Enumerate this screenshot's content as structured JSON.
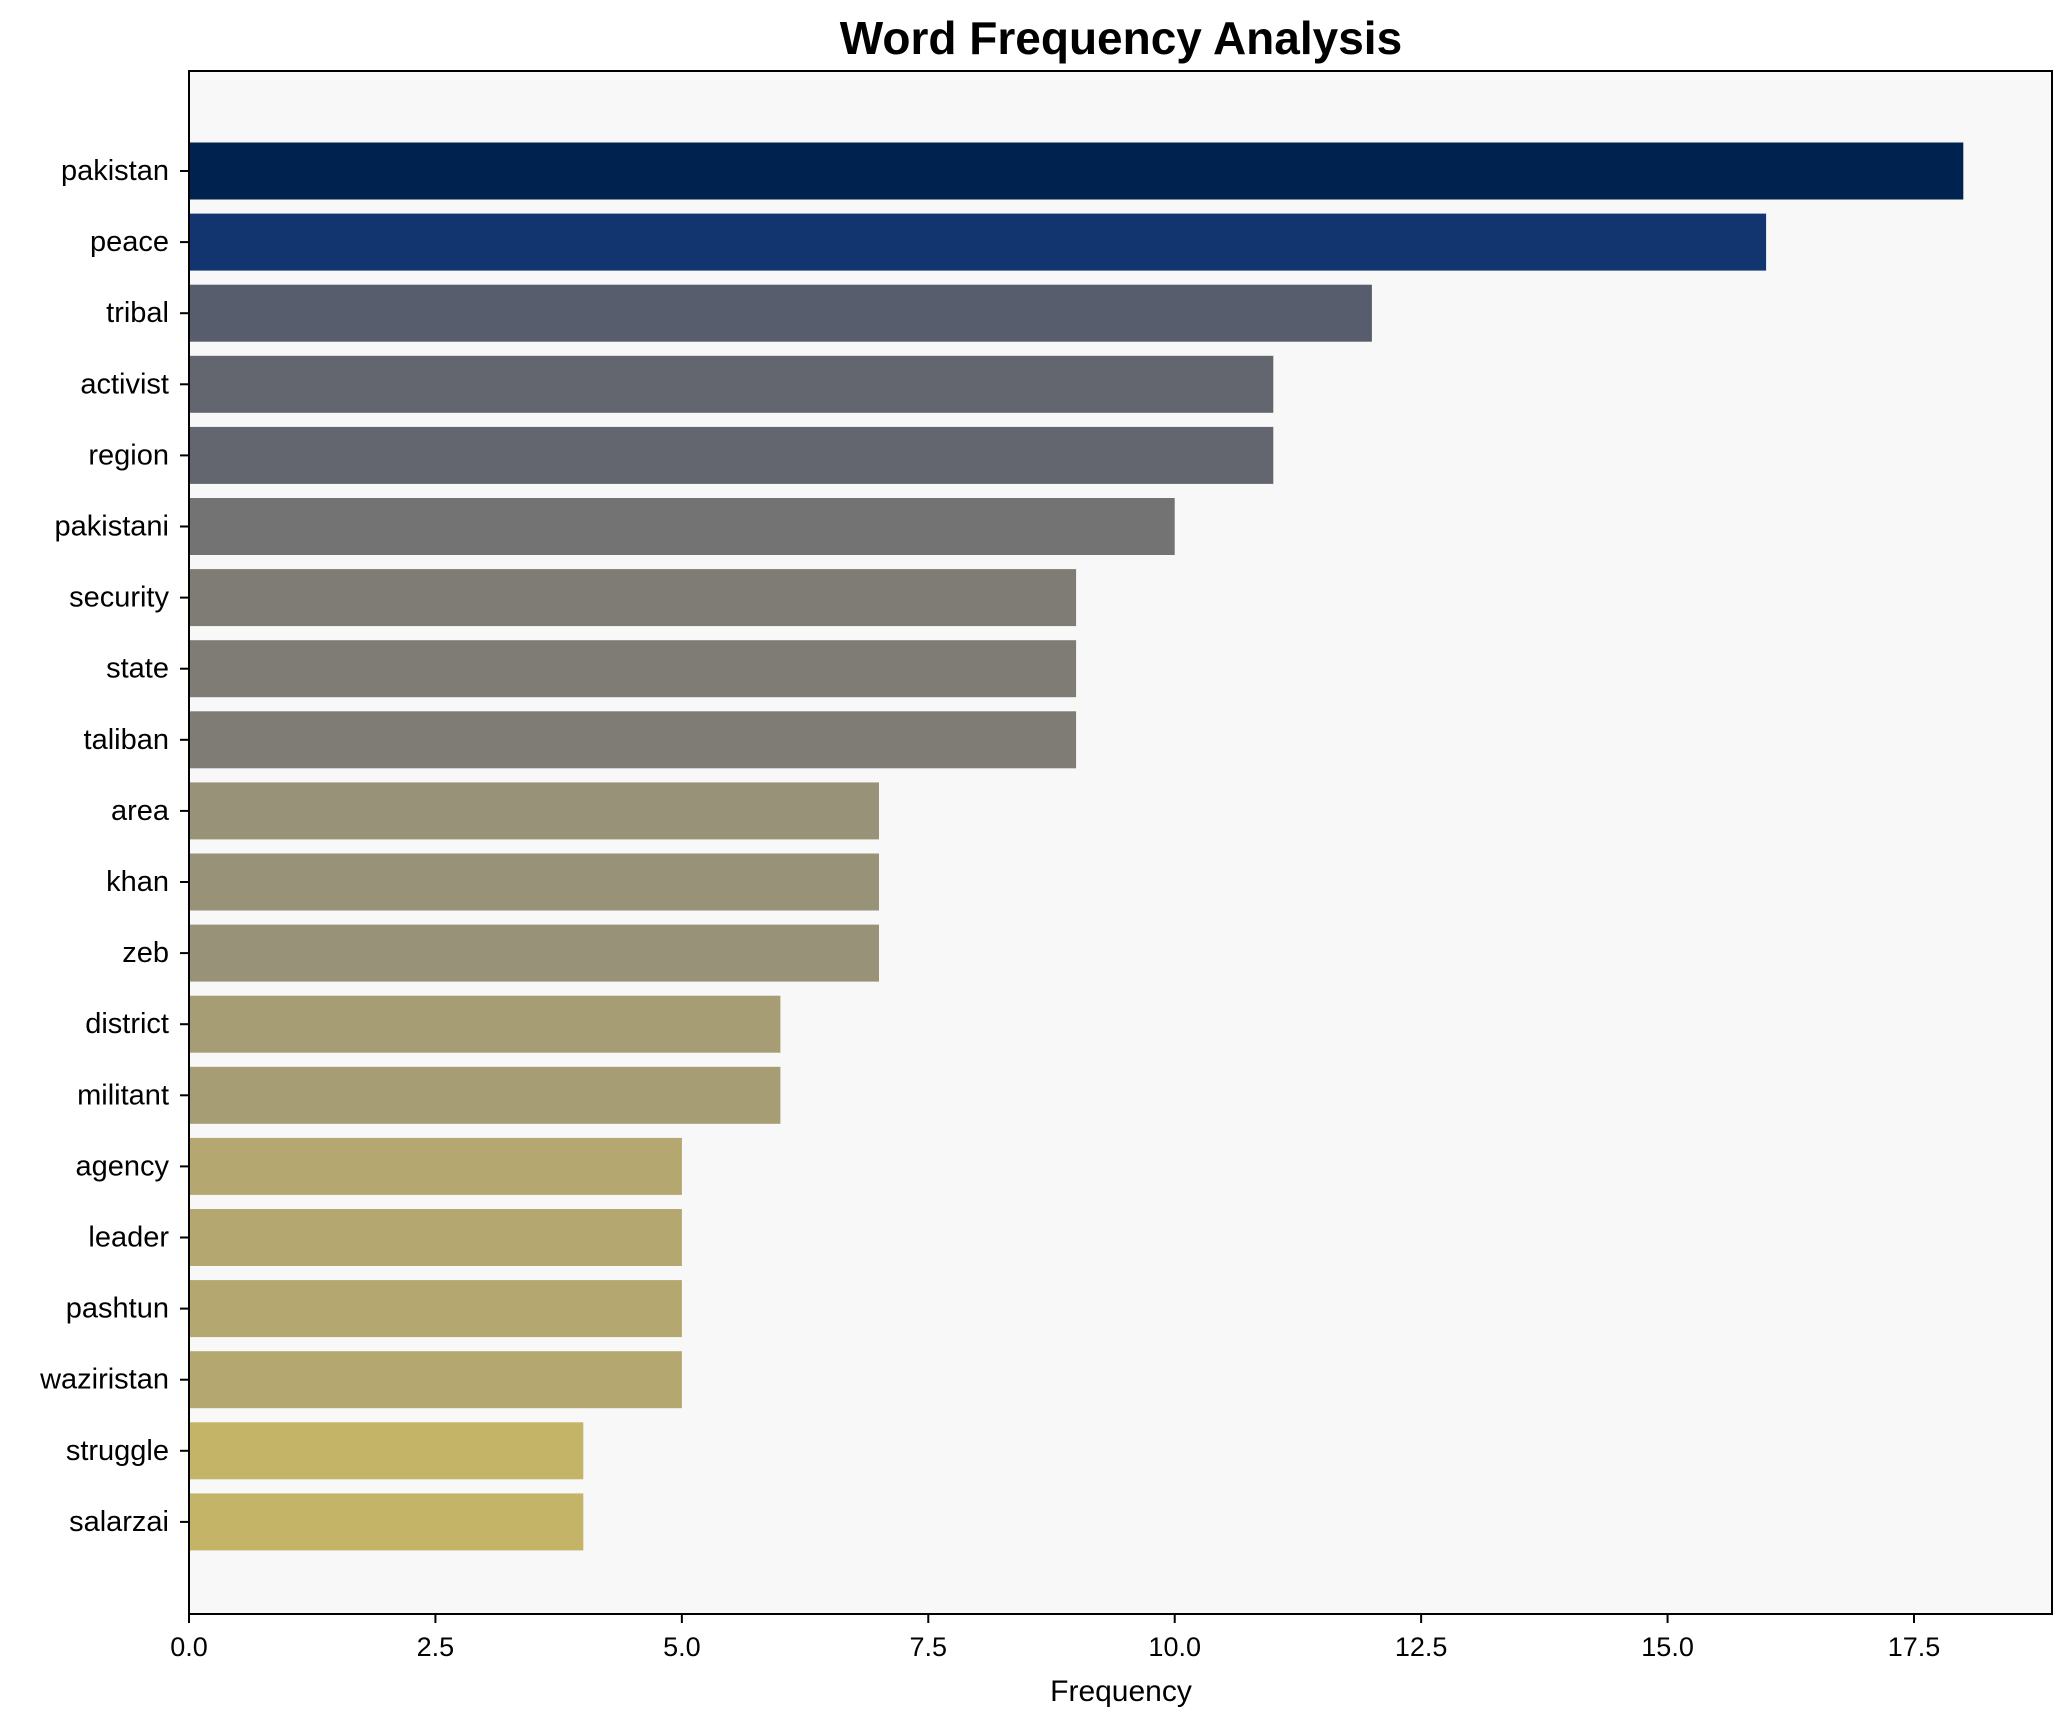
{
  "chart_data": {
    "type": "bar",
    "orientation": "horizontal",
    "title": "Word Frequency Analysis",
    "xlabel": "Frequency",
    "ylabel": "",
    "xlim": [
      0,
      18.9
    ],
    "xticks": [
      "0.0",
      "2.5",
      "5.0",
      "7.5",
      "10.0",
      "12.5",
      "15.0",
      "17.5"
    ],
    "grid": false,
    "categories": [
      "pakistan",
      "peace",
      "tribal",
      "activist",
      "region",
      "pakistani",
      "security",
      "state",
      "taliban",
      "area",
      "khan",
      "zeb",
      "district",
      "militant",
      "agency",
      "leader",
      "pashtun",
      "waziristan",
      "struggle",
      "salarzai"
    ],
    "values": [
      18,
      16,
      12,
      11,
      11,
      10,
      9,
      9,
      9,
      7,
      7,
      7,
      6,
      6,
      5,
      5,
      5,
      5,
      4,
      4
    ],
    "colors": [
      "#00224e",
      "#123570",
      "#575d6d",
      "#64666f",
      "#64666f",
      "#737373",
      "#7f7c75",
      "#7f7c75",
      "#7f7c75",
      "#989279",
      "#989279",
      "#989279",
      "#a69d75",
      "#a69d75",
      "#b4a76f",
      "#b4a76f",
      "#b4a76f",
      "#b4a76f",
      "#c4b467",
      "#c4b467"
    ],
    "background": "#f8f8f8"
  }
}
